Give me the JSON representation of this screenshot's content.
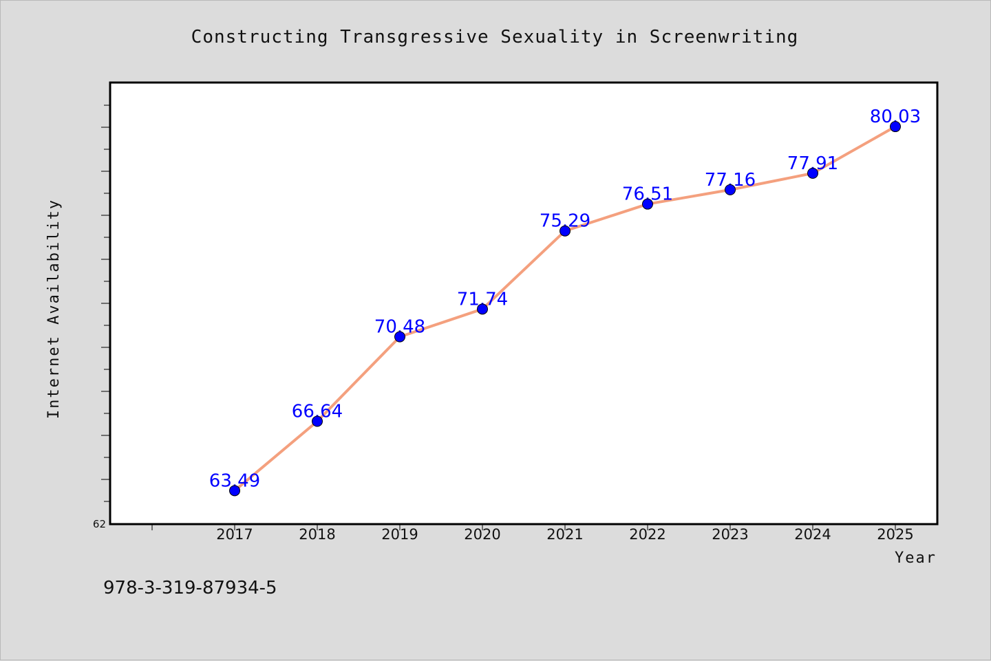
{
  "isbn_text": "978-3-319-87934-5",
  "colors": {
    "background": "#dcdcdc",
    "plot_background": "#ffffff",
    "line": "#f4a07e",
    "marker": "#0000ff",
    "data_label": "#0000ff"
  },
  "chart_data": {
    "type": "line",
    "title": "Constructing Transgressive Sexuality in Screenwriting",
    "xlabel": "Year",
    "ylabel": "Internet Availability",
    "x": [
      "2017",
      "2018",
      "2019",
      "2020",
      "2021",
      "2022",
      "2023",
      "2024",
      "2025"
    ],
    "series": [
      {
        "values": [
          63.49,
          66.64,
          70.48,
          71.74,
          75.29,
          76.51,
          77.16,
          77.91,
          80.03
        ]
      }
    ],
    "data_labels": [
      "63.49",
      "66.64",
      "70.48",
      "71.74",
      "75.29",
      "76.51",
      "77.16",
      "77.91",
      "80.03"
    ],
    "xlim": [
      2015.5,
      2025.5
    ],
    "ylim": [
      62,
      82
    ],
    "y_tick_labels": [
      "62"
    ],
    "grid": false,
    "legend": false
  }
}
